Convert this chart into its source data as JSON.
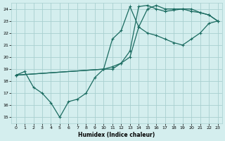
{
  "xlabel": "Humidex (Indice chaleur)",
  "bg_color": "#d4eeee",
  "grid_color": "#a8d0d0",
  "line_color": "#1a6b60",
  "xlim": [
    -0.5,
    23.5
  ],
  "ylim": [
    14.5,
    24.5
  ],
  "xticks": [
    0,
    1,
    2,
    3,
    4,
    5,
    6,
    7,
    8,
    9,
    10,
    11,
    12,
    13,
    14,
    15,
    16,
    17,
    18,
    19,
    20,
    21,
    22,
    23
  ],
  "yticks": [
    15,
    16,
    17,
    18,
    19,
    20,
    21,
    22,
    23,
    24
  ],
  "line1_x": [
    0,
    1,
    2,
    3,
    4,
    5,
    6,
    7,
    8,
    9,
    10,
    11,
    12,
    13,
    14,
    15,
    16,
    17,
    18,
    19,
    20,
    21,
    22,
    23
  ],
  "line1_y": [
    18.5,
    18.8,
    17.5,
    17.0,
    16.2,
    15.0,
    16.3,
    16.5,
    17.0,
    18.3,
    19.0,
    19.0,
    19.5,
    20.5,
    24.2,
    24.3,
    24.0,
    23.8,
    23.9,
    24.0,
    23.8,
    23.7,
    23.5,
    23.0
  ],
  "line2_x": [
    0,
    10,
    11,
    12,
    13,
    14,
    15,
    16,
    17,
    18,
    19,
    20,
    21,
    22,
    23
  ],
  "line2_y": [
    18.5,
    19.0,
    21.5,
    22.2,
    24.2,
    22.5,
    22.0,
    21.8,
    21.5,
    21.2,
    21.0,
    21.5,
    22.0,
    22.8,
    23.0
  ],
  "line3_x": [
    0,
    10,
    11,
    12,
    13,
    14,
    15,
    16,
    17,
    18,
    19,
    20,
    21,
    22,
    23
  ],
  "line3_y": [
    18.5,
    19.0,
    19.2,
    19.5,
    20.0,
    22.5,
    24.0,
    24.3,
    24.0,
    24.0,
    24.0,
    24.0,
    23.7,
    23.5,
    23.0
  ]
}
